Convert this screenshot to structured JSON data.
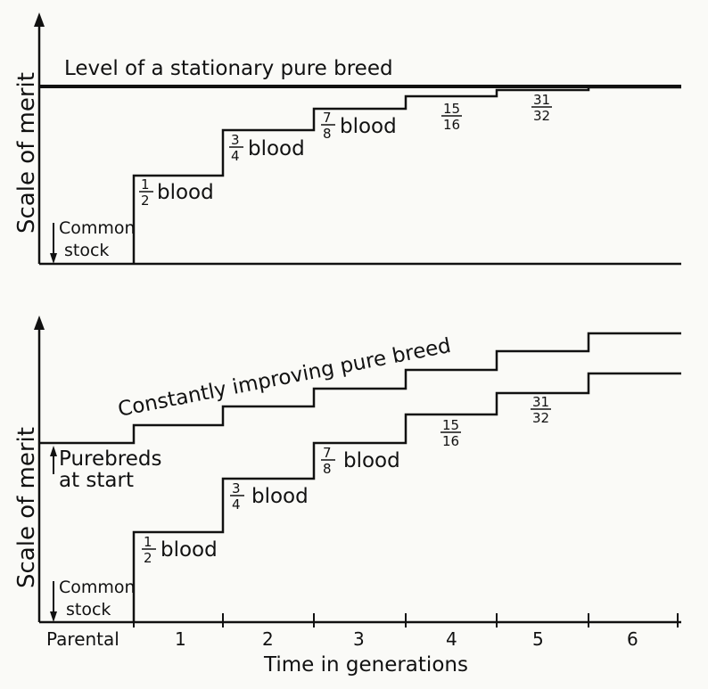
{
  "top_panel": {
    "y_label": "Scale of merit",
    "stationary_label": "Level of a stationary pure breed",
    "common_stock": [
      "Common",
      "stock"
    ],
    "steps": [
      {
        "fraction": [
          "1",
          "2"
        ],
        "suffix": "blood"
      },
      {
        "fraction": [
          "3",
          "4"
        ],
        "suffix": "blood"
      },
      {
        "fraction": [
          "7",
          "8"
        ],
        "suffix": "blood"
      },
      {
        "fraction": [
          "15",
          "16"
        ],
        "suffix": ""
      },
      {
        "fraction": [
          "31",
          "32"
        ],
        "suffix": ""
      }
    ]
  },
  "bottom_panel": {
    "y_label": "Scale of merit",
    "improving_label": "Constantly improving pure breed",
    "purebreds_label": [
      "Purebreds",
      "at start"
    ],
    "common_stock": [
      "Common",
      "stock"
    ],
    "steps": [
      {
        "fraction": [
          "1",
          "2"
        ],
        "suffix": "blood"
      },
      {
        "fraction": [
          "3",
          "4"
        ],
        "suffix": "blood"
      },
      {
        "fraction": [
          "7",
          "8"
        ],
        "suffix": "blood"
      },
      {
        "fraction": [
          "15",
          "16"
        ],
        "suffix": ""
      },
      {
        "fraction": [
          "31",
          "32"
        ],
        "suffix": ""
      }
    ]
  },
  "x_axis": {
    "title": "Time in generations",
    "ticks": [
      "Parental",
      "1",
      "2",
      "3",
      "4",
      "5",
      "6"
    ]
  }
}
